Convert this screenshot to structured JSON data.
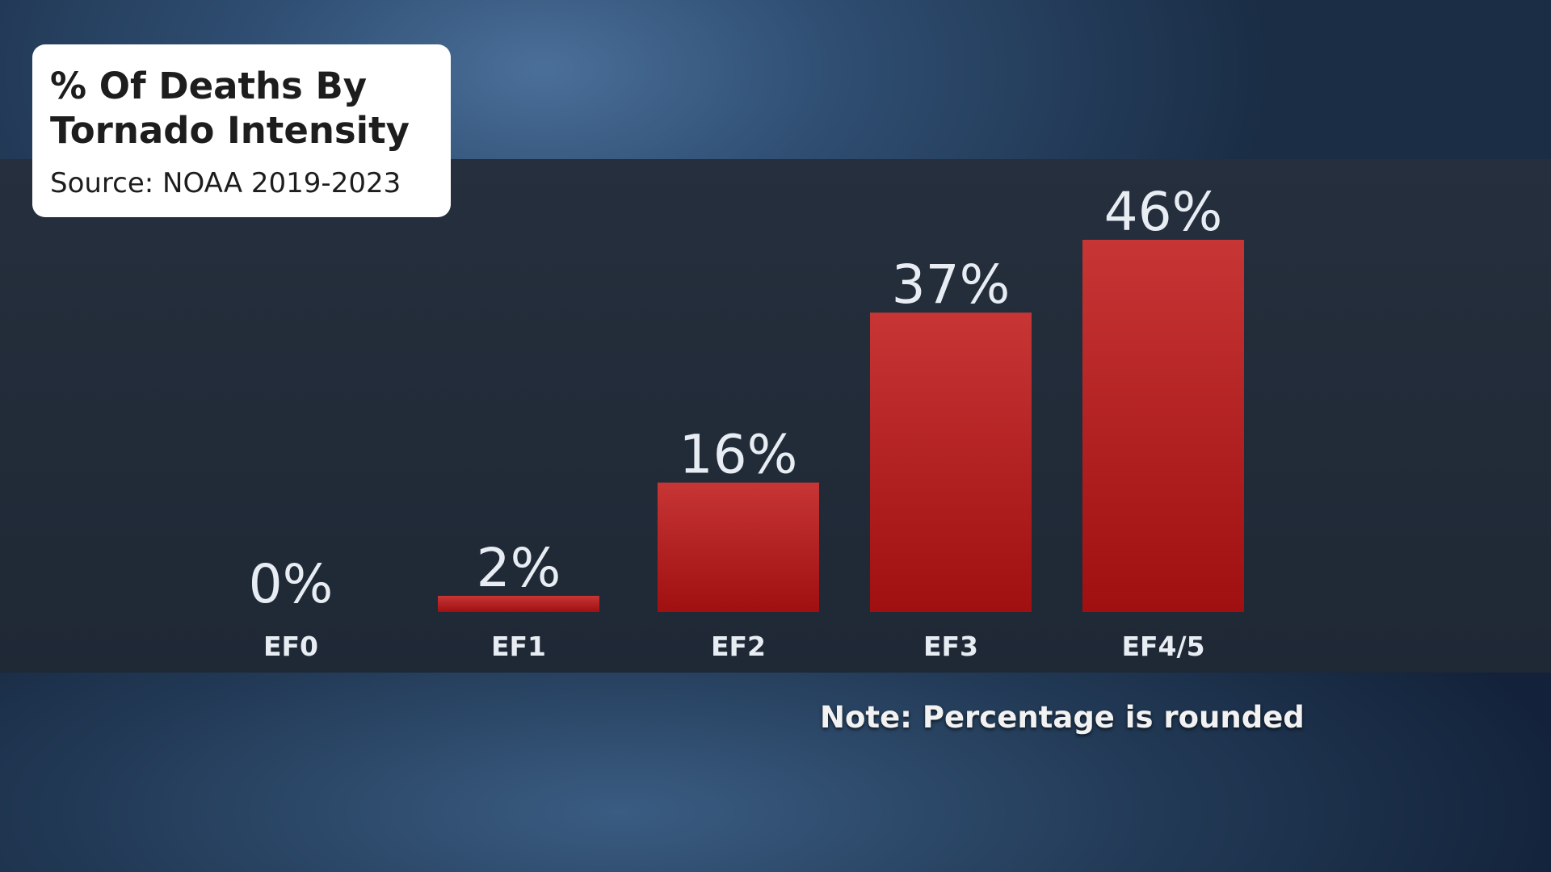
{
  "title_card": {
    "title": "% Of Deaths By Tornado Intensity",
    "source": "Source: NOAA 2019-2023"
  },
  "note": "Note: Percentage is rounded",
  "colors": {
    "bar_top": "#c73535",
    "bar_bottom": "#a01010",
    "label_text": "#e8edf3"
  },
  "chart_data": {
    "type": "bar",
    "title": "% Of Deaths By Tornado Intensity",
    "categories": [
      "EF0",
      "EF1",
      "EF2",
      "EF3",
      "EF4/5"
    ],
    "values": [
      0,
      2,
      16,
      37,
      46
    ],
    "value_labels": [
      "0%",
      "2%",
      "16%",
      "37%",
      "46%"
    ],
    "ylim": [
      0,
      46
    ],
    "grid": false,
    "xlabel": "",
    "ylabel": ""
  }
}
